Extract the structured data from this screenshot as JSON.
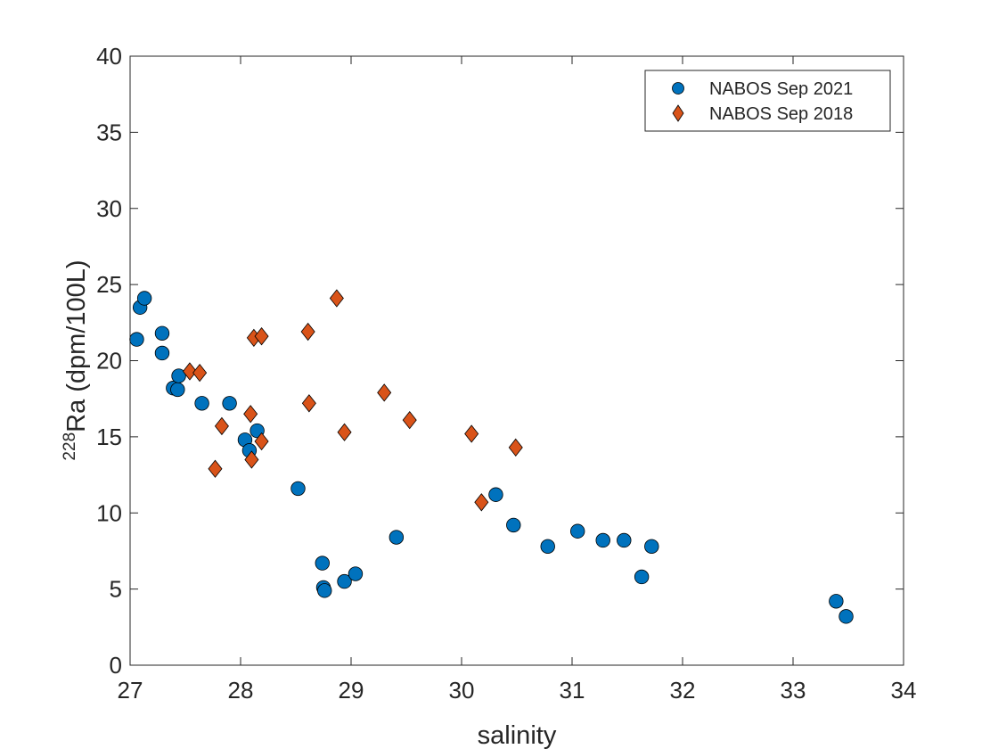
{
  "chart_data": {
    "type": "scatter",
    "xlabel": "salinity",
    "ylabel_sup": "228",
    "ylabel": "Ra (dpm/100L)",
    "xlim": [
      27,
      34
    ],
    "ylim": [
      0,
      40
    ],
    "xticks": [
      27,
      28,
      29,
      30,
      31,
      32,
      33,
      34
    ],
    "yticks": [
      0,
      5,
      10,
      15,
      20,
      25,
      30,
      35,
      40
    ],
    "grid": false,
    "legend_position": "top-right",
    "series": [
      {
        "name": "NABOS Sep 2021",
        "marker": "circle",
        "color": "#0072BD",
        "points": [
          [
            27.06,
            21.4
          ],
          [
            27.09,
            23.5
          ],
          [
            27.13,
            24.1
          ],
          [
            27.29,
            21.8
          ],
          [
            27.29,
            20.5
          ],
          [
            27.39,
            18.2
          ],
          [
            27.43,
            18.1
          ],
          [
            27.44,
            19.0
          ],
          [
            27.65,
            17.2
          ],
          [
            27.9,
            17.2
          ],
          [
            28.04,
            14.8
          ],
          [
            28.08,
            14.1
          ],
          [
            28.15,
            15.4
          ],
          [
            28.52,
            11.6
          ],
          [
            28.74,
            6.7
          ],
          [
            28.75,
            5.1
          ],
          [
            28.76,
            4.9
          ],
          [
            28.94,
            5.5
          ],
          [
            29.04,
            6.0
          ],
          [
            29.41,
            8.4
          ],
          [
            30.31,
            11.2
          ],
          [
            30.47,
            9.2
          ],
          [
            30.78,
            7.8
          ],
          [
            31.05,
            8.8
          ],
          [
            31.28,
            8.2
          ],
          [
            31.47,
            8.2
          ],
          [
            31.63,
            5.8
          ],
          [
            31.72,
            7.8
          ],
          [
            33.39,
            4.2
          ],
          [
            33.48,
            3.2
          ]
        ]
      },
      {
        "name": "NABOS Sep 2018",
        "marker": "diamond",
        "color": "#D95319",
        "points": [
          [
            27.54,
            19.3
          ],
          [
            27.63,
            19.2
          ],
          [
            27.77,
            12.9
          ],
          [
            27.83,
            15.7
          ],
          [
            28.09,
            16.5
          ],
          [
            28.1,
            13.5
          ],
          [
            28.12,
            21.5
          ],
          [
            28.19,
            21.6
          ],
          [
            28.19,
            14.7
          ],
          [
            28.61,
            21.9
          ],
          [
            28.62,
            17.2
          ],
          [
            28.87,
            24.1
          ],
          [
            28.94,
            15.3
          ],
          [
            29.3,
            17.9
          ],
          [
            29.53,
            16.1
          ],
          [
            30.09,
            15.2
          ],
          [
            30.18,
            10.7
          ],
          [
            30.49,
            14.3
          ]
        ]
      }
    ]
  }
}
